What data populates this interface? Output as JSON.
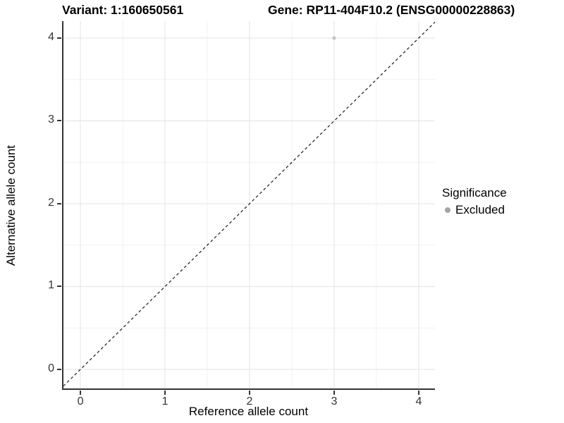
{
  "chart_data": {
    "type": "scatter",
    "title_variant": "Variant: 1:160650561",
    "title_gene": "Gene: RP11-404F10.2 (ENSG00000228863)",
    "xlabel": "Reference allele count",
    "ylabel": "Alternative allele count",
    "x_ticks": [
      "0",
      "1",
      "2",
      "3",
      "4"
    ],
    "y_ticks": [
      "0",
      "1",
      "2",
      "3",
      "4"
    ],
    "x_tick_values": [
      0,
      1,
      2,
      3,
      4
    ],
    "y_tick_values": [
      0,
      1,
      2,
      3,
      4
    ],
    "xlim": [
      -0.217,
      4.192
    ],
    "ylim": [
      -0.247,
      4.204
    ],
    "grid": "major and minor gridlines, light gray on white",
    "points": [
      {
        "x": 3,
        "y": 4,
        "significance": "Excluded"
      }
    ],
    "reference_line": {
      "equation": "y = x",
      "style": "dashed"
    },
    "legend": {
      "title": "Significance",
      "position": "right-center",
      "entries": [
        {
          "label": "Excluded",
          "color": "#a4a4a4"
        }
      ]
    },
    "colors": {
      "point": "#c4c4c4",
      "grid_major": "#e3e3e3",
      "grid_minor": "#f1f1f1",
      "axis_line": "#333333",
      "dashed_line": "#1a1a1a",
      "tick_text": "#333333"
    }
  }
}
